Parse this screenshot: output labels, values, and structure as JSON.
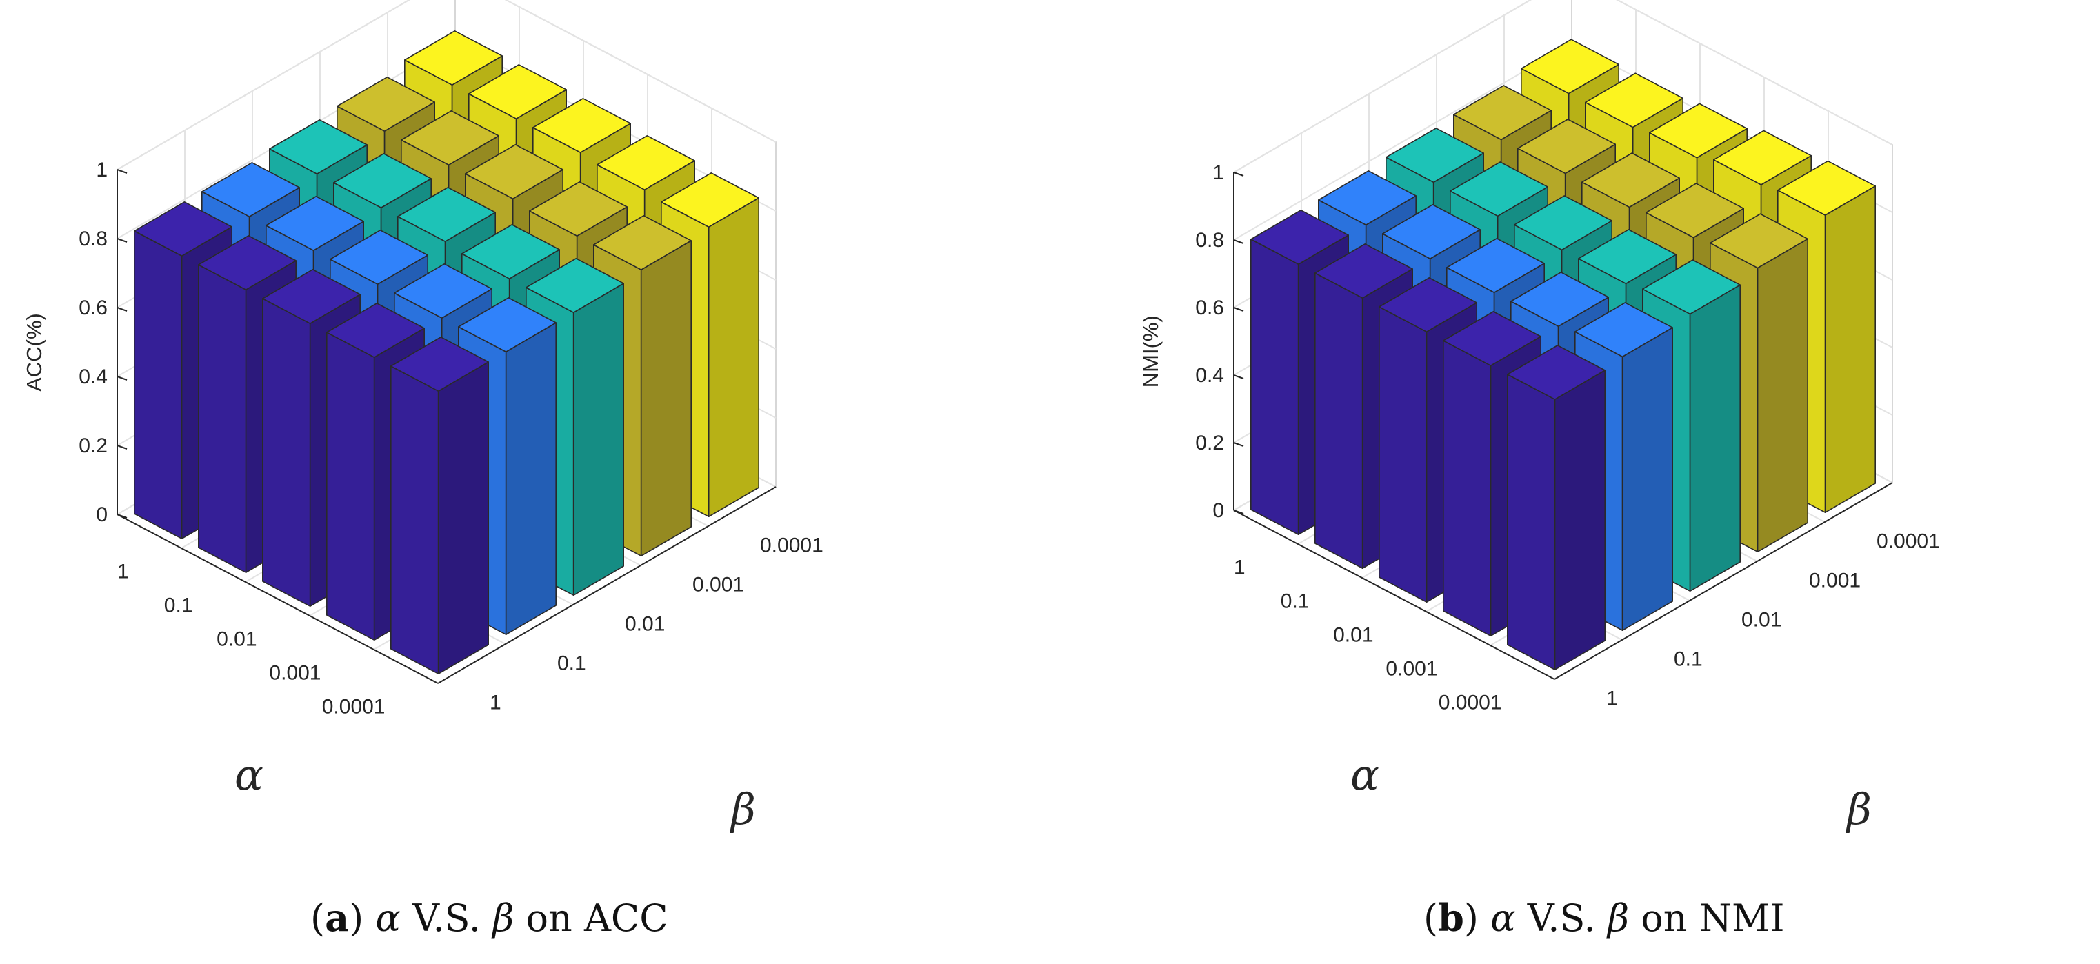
{
  "chart_data": [
    {
      "type": "bar3d",
      "caption": {
        "letter": "a",
        "alpha": "α",
        "vs": "V.S.",
        "beta": "β",
        "suffix": "on ACC"
      },
      "zlabel": "ACC(%)",
      "xlabel": "α",
      "ylabel": "β",
      "zlim": [
        0,
        1
      ],
      "zticks": [
        "0",
        "0.2",
        "0.4",
        "0.6",
        "0.8",
        "1"
      ],
      "alpha_ticks": [
        "1",
        "0.1",
        "0.01",
        "0.001",
        "0.0001"
      ],
      "beta_ticks": [
        "1",
        "0.1",
        "0.01",
        "0.001",
        "0.0001"
      ],
      "series_colors": [
        "#3b22a8",
        "#2f7ff5",
        "#1cbfb3",
        "#c9bb2c",
        "#f7ef1e"
      ],
      "values": [
        [
          0.82,
          0.82,
          0.82,
          0.82,
          0.82
        ],
        [
          0.82,
          0.82,
          0.82,
          0.82,
          0.82
        ],
        [
          0.83,
          0.83,
          0.83,
          0.82,
          0.82
        ],
        [
          0.84,
          0.84,
          0.84,
          0.83,
          0.83
        ],
        [
          0.86,
          0.86,
          0.86,
          0.85,
          0.84
        ]
      ]
    },
    {
      "type": "bar3d",
      "caption": {
        "letter": "b",
        "alpha": "α",
        "vs": "V.S.",
        "beta": "β",
        "suffix": "on NMI"
      },
      "zlabel": "NMI(%)",
      "xlabel": "α",
      "ylabel": "β",
      "zlim": [
        0,
        1
      ],
      "zticks": [
        "0",
        "0.2",
        "0.4",
        "0.6",
        "0.8",
        "1"
      ],
      "alpha_ticks": [
        "1",
        "0.1",
        "0.01",
        "0.001",
        "0.0001"
      ],
      "beta_ticks": [
        "1",
        "0.1",
        "0.01",
        "0.001",
        "0.0001"
      ],
      "series_colors": [
        "#3b22a8",
        "#2f7ff5",
        "#1cbfb3",
        "#c9bb2c",
        "#f7ef1e"
      ],
      "values": [
        [
          0.8,
          0.8,
          0.8,
          0.8,
          0.8
        ],
        [
          0.8,
          0.8,
          0.8,
          0.8,
          0.81
        ],
        [
          0.81,
          0.81,
          0.81,
          0.81,
          0.82
        ],
        [
          0.82,
          0.82,
          0.82,
          0.83,
          0.84
        ],
        [
          0.84,
          0.84,
          0.85,
          0.87,
          0.88
        ]
      ]
    }
  ]
}
